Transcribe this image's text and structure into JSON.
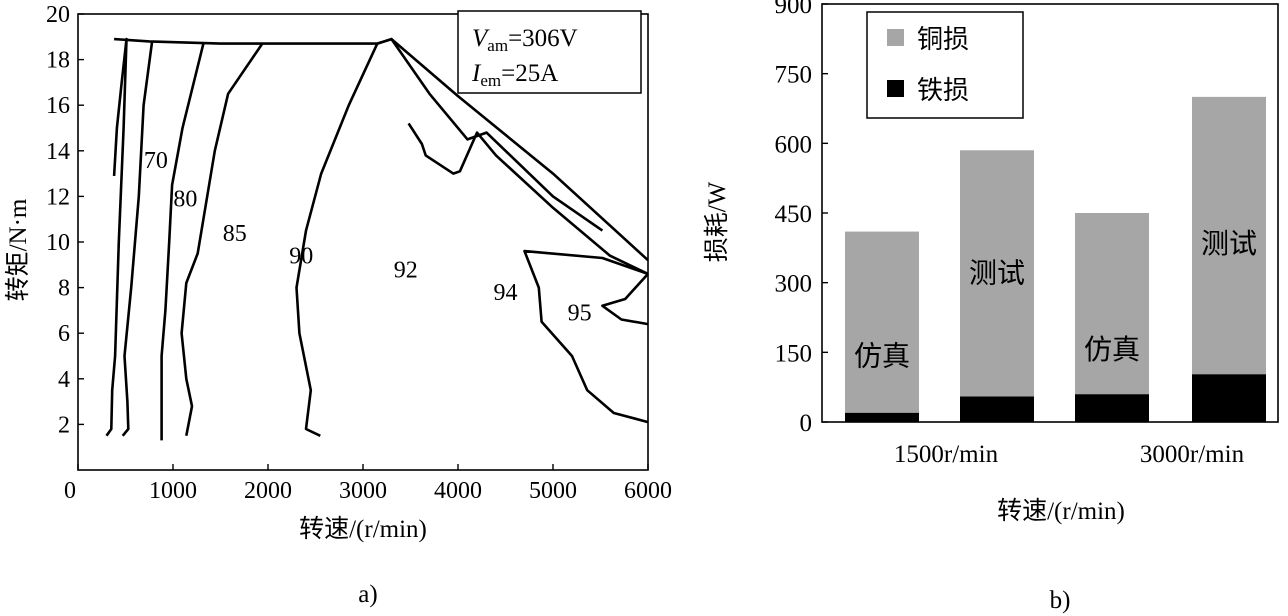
{
  "chart_data": [
    {
      "type": "contour",
      "panel_label": "a)",
      "xlabel": "转速/(r/min)",
      "ylabel": "转矩/N·m",
      "xlim": [
        0,
        6000
      ],
      "ylim": [
        0,
        20
      ],
      "xticks": [
        "0",
        "1000",
        "2000",
        "3000",
        "4000",
        "5000",
        "6000"
      ],
      "yticks": [
        "2",
        "4",
        "6",
        "8",
        "10",
        "12",
        "14",
        "16",
        "18",
        "20"
      ],
      "legend_box": {
        "v_symbol": "V",
        "v_sub": "am",
        "v_value": "=306V",
        "i_symbol": "I",
        "i_sub": "em",
        "i_value": "=25A"
      },
      "envelope": [
        [
          380,
          18.9
        ],
        [
          750,
          18.8
        ],
        [
          1500,
          18.7
        ],
        [
          2500,
          18.7
        ],
        [
          3150,
          18.7
        ],
        [
          3300,
          18.9
        ],
        [
          4000,
          16.4
        ],
        [
          5000,
          13
        ],
        [
          6000,
          9.2
        ]
      ],
      "contours": [
        {
          "level": "70",
          "label_at": [
            820,
            13.6
          ],
          "points": [
            [
              380,
              12.9
            ],
            [
              410,
              15
            ],
            [
              460,
              17
            ],
            [
              510,
              18.9
            ],
            [
              480,
              15
            ],
            [
              430,
              10
            ],
            [
              390,
              5
            ],
            [
              360,
              3.5
            ],
            [
              350,
              1.8
            ],
            [
              300,
              1.5
            ]
          ]
        },
        {
          "level": "80",
          "label_at": [
            1130,
            11.9
          ],
          "points": [
            [
              780,
              18.8
            ],
            [
              690,
              16
            ],
            [
              640,
              12
            ],
            [
              560,
              8
            ],
            [
              490,
              5
            ],
            [
              520,
              3
            ],
            [
              530,
              1.8
            ],
            [
              470,
              1.5
            ]
          ]
        },
        {
          "level": "85",
          "label_at": [
            1650,
            10.4
          ],
          "points": [
            [
              1320,
              18.7
            ],
            [
              1100,
              15
            ],
            [
              990,
              12.5
            ],
            [
              960,
              10
            ],
            [
              920,
              7
            ],
            [
              880,
              5
            ],
            [
              880,
              3.5
            ],
            [
              880,
              1.3
            ]
          ]
        },
        {
          "level": "90",
          "label_at": [
            2350,
            9.4
          ],
          "points": [
            [
              1940,
              18.7
            ],
            [
              1580,
              16.5
            ],
            [
              1440,
              14
            ],
            [
              1320,
              11
            ],
            [
              1260,
              9.5
            ],
            [
              1140,
              8.2
            ],
            [
              1090,
              6
            ],
            [
              1140,
              4
            ],
            [
              1200,
              2.8
            ],
            [
              1140,
              1.5
            ]
          ]
        },
        {
          "level": "92",
          "label_at": [
            3450,
            8.8
          ],
          "points": [
            [
              3150,
              18.7
            ],
            [
              2850,
              16
            ],
            [
              2560,
              13
            ],
            [
              2400,
              10.5
            ],
            [
              2300,
              8
            ],
            [
              2330,
              6
            ],
            [
              2450,
              3.5
            ],
            [
              2400,
              1.8
            ],
            [
              2550,
              1.5
            ]
          ]
        },
        {
          "level": "94",
          "label_at": [
            4500,
            7.8
          ],
          "points": [
            [
              6000,
              8.6
            ],
            [
              5520,
              9.3
            ],
            [
              4700,
              9.6
            ],
            [
              4850,
              8
            ],
            [
              4880,
              6.5
            ],
            [
              5200,
              5
            ],
            [
              5360,
              3.5
            ],
            [
              5640,
              2.5
            ],
            [
              6000,
              2.1
            ],
            [
              6000,
              2.1
            ]
          ]
        },
        {
          "level": "95",
          "label_at": [
            5280,
            6.9
          ],
          "points": [
            [
              6000,
              8.6
            ],
            [
              5760,
              7.5
            ],
            [
              5520,
              7.2
            ],
            [
              5720,
              6.6
            ],
            [
              6000,
              6.4
            ]
          ]
        },
        {
          "level": "",
          "label_at": null,
          "points": [
            [
              3150,
              18.7
            ],
            [
              3300,
              18.9
            ],
            [
              3700,
              16.5
            ],
            [
              4100,
              14.5
            ],
            [
              4300,
              14.8
            ],
            [
              5000,
              12
            ],
            [
              5520,
              10.5
            ]
          ]
        },
        {
          "level": "",
          "label_at": null,
          "points": [
            [
              3480,
              15.2
            ],
            [
              3620,
              14.3
            ],
            [
              3660,
              13.8
            ],
            [
              3950,
              13
            ],
            [
              4020,
              13.1
            ],
            [
              4200,
              14.8
            ],
            [
              4400,
              13.8
            ],
            [
              5000,
              11.5
            ],
            [
              5600,
              9.4
            ],
            [
              6000,
              8.6
            ]
          ]
        }
      ]
    },
    {
      "type": "stacked_bar",
      "panel_label": "b)",
      "xlabel": "转速/(r/min)",
      "ylabel": "损耗/W",
      "ylim": [
        0,
        900
      ],
      "yticks": [
        "0",
        "150",
        "300",
        "450",
        "600",
        "750",
        "900"
      ],
      "group_labels": [
        "1500r/min",
        "3000r/min"
      ],
      "categories": [
        "仿真",
        "测试",
        "仿真",
        "测试"
      ],
      "series": [
        {
          "name": "铁损",
          "color": "#000000",
          "values": [
            20,
            55,
            60,
            103
          ]
        },
        {
          "name": "铜损",
          "color": "#a6a6a6",
          "values": [
            390,
            530,
            390,
            597
          ]
        }
      ],
      "bar_labels": [
        "仿真",
        "测试",
        "仿真",
        "测试"
      ],
      "legend": [
        "铜损",
        "铁损"
      ],
      "legend_position": "top-left"
    }
  ]
}
